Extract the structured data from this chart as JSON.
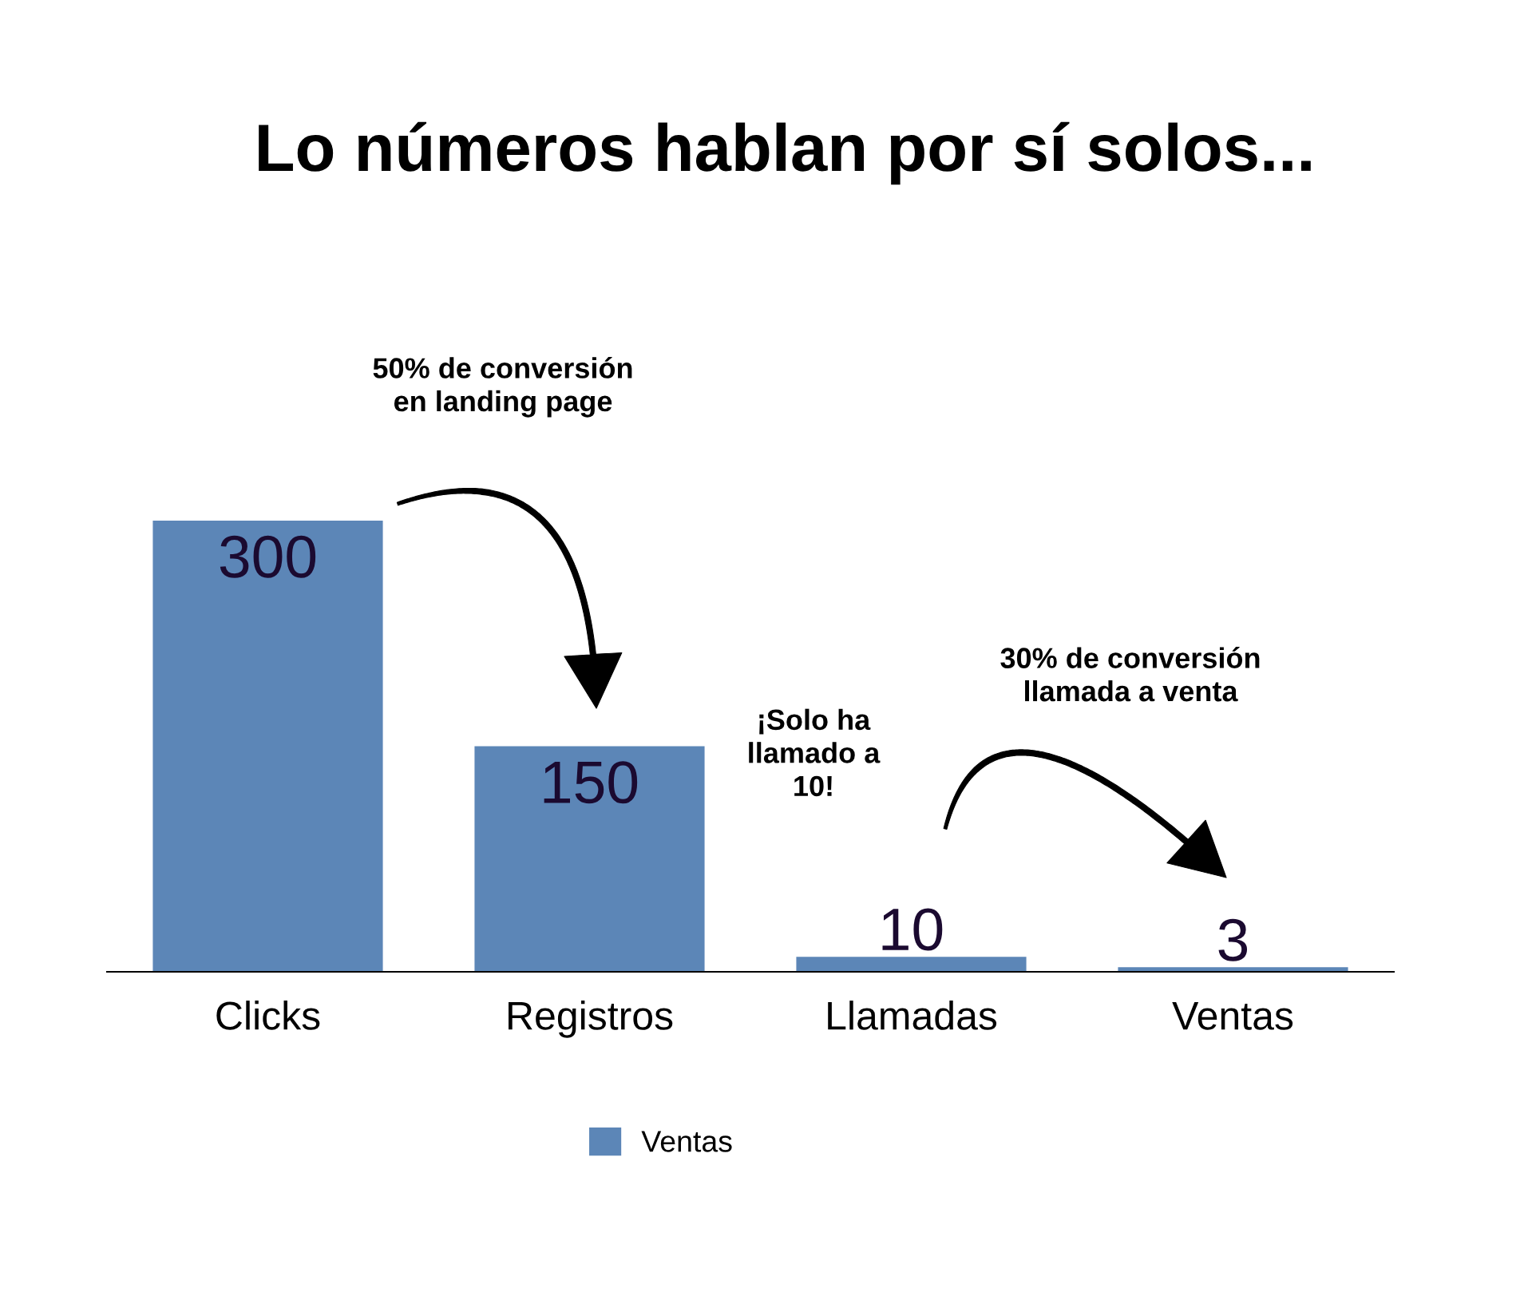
{
  "chart_data": {
    "type": "bar",
    "title": "Lo números hablan por sí solos...",
    "categories": [
      "Clicks",
      "Registros",
      "Llamadas",
      "Ventas"
    ],
    "series": [
      {
        "name": "Ventas",
        "color": "#5c86b7",
        "values": [
          300,
          150,
          10,
          3
        ]
      }
    ],
    "data_labels": true,
    "legend": "bottom",
    "tick_labels": "x",
    "annotations": [
      "50% de conversión\nen landing page",
      "¡Solo ha\nllamado a\n10!",
      "30% de conversión\nllamada a venta"
    ]
  }
}
